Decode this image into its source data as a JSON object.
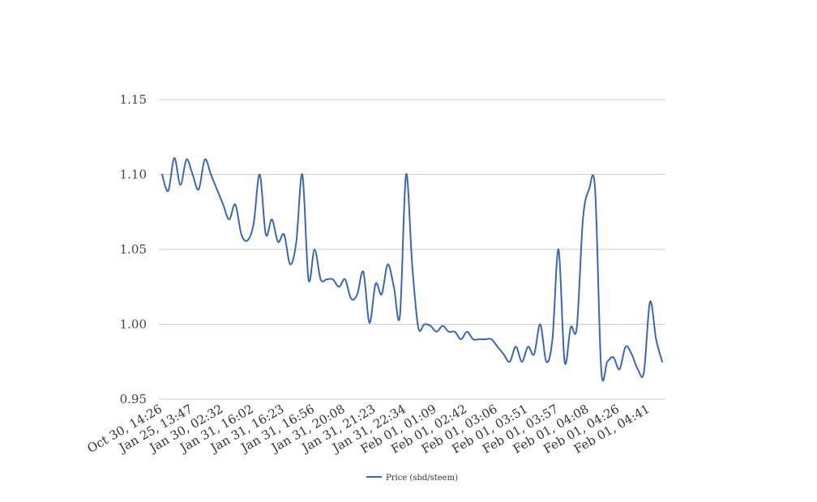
{
  "chart_data": {
    "type": "line",
    "title": "",
    "xlabel": "",
    "ylabel": "",
    "ylim": [
      0.95,
      1.15
    ],
    "y_ticks": [
      "0.95",
      "1.00",
      "1.05",
      "1.10",
      "1.15"
    ],
    "grid": true,
    "legend_position": "bottom",
    "x_tick_labels": [
      "Oct 30, 14:26",
      "Jan 25, 13:47",
      "Jan 30, 02:32",
      "Jan 31, 16:02",
      "Jan 31, 16:23",
      "Jan 31, 16:56",
      "Jan 31, 20:08",
      "Jan 31, 21:23",
      "Jan 31, 22:34",
      "Feb 01, 01:09",
      "Feb 01, 02:42",
      "Feb 01, 03:06",
      "Feb 01, 03:51",
      "Feb 01, 03:57",
      "Feb 01, 04:08",
      "Feb 01, 04:26",
      "Feb 01, 04:41"
    ],
    "series": [
      {
        "name": "Price (sbd/steem)",
        "color": "#3a67b8",
        "values": [
          1.1,
          1.089,
          1.111,
          1.093,
          1.11,
          1.1,
          1.09,
          1.11,
          1.1,
          1.09,
          1.08,
          1.07,
          1.08,
          1.06,
          1.056,
          1.067,
          1.1,
          1.06,
          1.07,
          1.055,
          1.06,
          1.04,
          1.055,
          1.1,
          1.03,
          1.05,
          1.03,
          1.03,
          1.03,
          1.025,
          1.03,
          1.017,
          1.02,
          1.035,
          1.001,
          1.027,
          1.02,
          1.04,
          1.025,
          1.006,
          1.1,
          1.04,
          0.998,
          1.0,
          0.999,
          0.995,
          0.999,
          0.995,
          0.995,
          0.99,
          0.995,
          0.99,
          0.99,
          0.99,
          0.99,
          0.985,
          0.98,
          0.975,
          0.985,
          0.975,
          0.985,
          0.98,
          1.0,
          0.975,
          0.99,
          1.05,
          0.975,
          0.998,
          0.998,
          1.07,
          1.09,
          1.09,
          0.97,
          0.975,
          0.978,
          0.97,
          0.985,
          0.98,
          0.97,
          0.968,
          1.015,
          0.99,
          0.975
        ]
      }
    ]
  }
}
